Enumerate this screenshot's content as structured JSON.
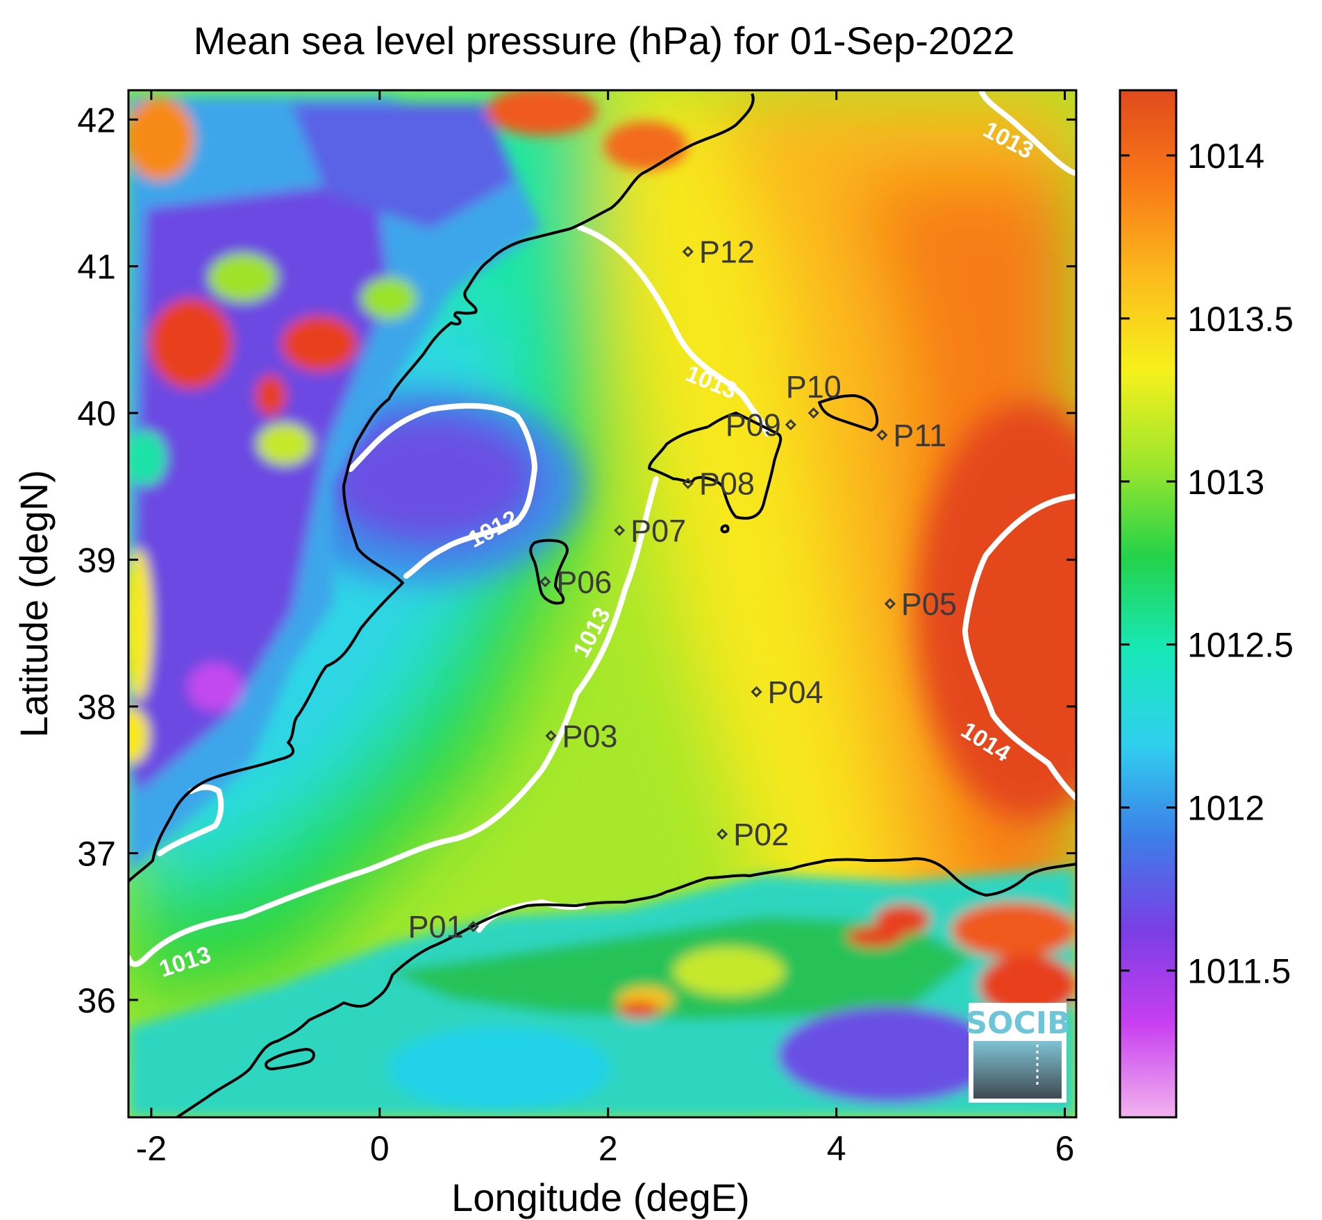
{
  "title": "Mean sea level pressure (hPa) for 01-Sep-2022",
  "x_axis": {
    "label": "Longitude (degE)",
    "ticks": [
      "-2",
      "0",
      "2",
      "4",
      "6"
    ],
    "tick_values": [
      -2,
      0,
      2,
      4,
      6
    ],
    "range": [
      -2.2,
      6.1
    ]
  },
  "y_axis": {
    "label": "Latitude (degN)",
    "ticks": [
      "42",
      "41",
      "40",
      "39",
      "38",
      "37",
      "36"
    ],
    "tick_values": [
      42,
      41,
      40,
      39,
      38,
      37,
      36
    ],
    "range": [
      35.2,
      42.2
    ]
  },
  "colorbar": {
    "ticks": [
      "1014",
      "1013.5",
      "1013",
      "1012.5",
      "1012",
      "1011.5"
    ],
    "tick_values": [
      1014,
      1013.5,
      1013,
      1012.5,
      1012,
      1011.5
    ],
    "range": [
      1011.05,
      1014.2
    ],
    "colors": [
      "#f2b3ef",
      "#c83ff0",
      "#7a3ee4",
      "#3d7ee8",
      "#2fd0ee",
      "#18e8b8",
      "#24d24a",
      "#9ee62c",
      "#f7f01c",
      "#fbbb1c",
      "#f97a18",
      "#e14a1c"
    ]
  },
  "stations": [
    {
      "name": "P01",
      "lon": 0.82,
      "lat": 36.5,
      "label_side": "left"
    },
    {
      "name": "P02",
      "lon": 3.0,
      "lat": 37.13,
      "label_side": "right"
    },
    {
      "name": "P03",
      "lon": 1.5,
      "lat": 37.8,
      "label_side": "right"
    },
    {
      "name": "P04",
      "lon": 3.3,
      "lat": 38.1,
      "label_side": "right"
    },
    {
      "name": "P05",
      "lon": 4.47,
      "lat": 38.7,
      "label_side": "right"
    },
    {
      "name": "P06",
      "lon": 1.45,
      "lat": 38.85,
      "label_side": "right"
    },
    {
      "name": "P07",
      "lon": 2.1,
      "lat": 39.2,
      "label_side": "right"
    },
    {
      "name": "P08",
      "lon": 2.7,
      "lat": 39.52,
      "label_side": "right"
    },
    {
      "name": "P09",
      "lon": 3.6,
      "lat": 39.92,
      "label_side": "left"
    },
    {
      "name": "P10",
      "lon": 3.8,
      "lat": 40.0,
      "label_side": "top"
    },
    {
      "name": "P11",
      "lon": 4.4,
      "lat": 39.85,
      "label_side": "right"
    },
    {
      "name": "P12",
      "lon": 2.7,
      "lat": 41.1,
      "label_side": "right"
    }
  ],
  "contour_labels": [
    {
      "text": "1013",
      "lon": 5.5,
      "lat": 41.85,
      "angle": 28
    },
    {
      "text": "1013",
      "lon": 2.9,
      "lat": 40.2,
      "angle": 22
    },
    {
      "text": "1012",
      "lon": 1.0,
      "lat": 39.2,
      "angle": -28
    },
    {
      "text": "1013",
      "lon": 1.87,
      "lat": 38.5,
      "angle": -62
    },
    {
      "text": "1014",
      "lon": 5.3,
      "lat": 37.75,
      "angle": 32
    },
    {
      "text": "1013",
      "lon": -1.7,
      "lat": 36.25,
      "angle": -18
    }
  ],
  "logo": {
    "text": "SOCIB"
  },
  "palette": {
    "coastline": "#000000",
    "contour": "#ffffff",
    "station": "#3a3a3a"
  }
}
